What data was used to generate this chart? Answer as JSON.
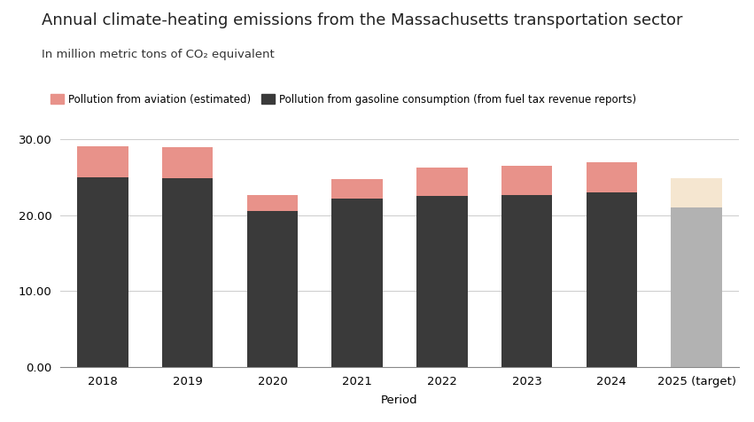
{
  "years": [
    "2018",
    "2019",
    "2020",
    "2021",
    "2022",
    "2023",
    "2024",
    "2025 (target)"
  ],
  "gasoline": [
    25.0,
    24.9,
    20.5,
    22.2,
    22.5,
    22.7,
    23.0,
    21.0
  ],
  "aviation": [
    4.1,
    4.1,
    2.1,
    2.6,
    3.8,
    3.8,
    4.0,
    3.9
  ],
  "gasoline_colors": [
    "#3a3a3a",
    "#3a3a3a",
    "#3a3a3a",
    "#3a3a3a",
    "#3a3a3a",
    "#3a3a3a",
    "#3a3a3a",
    "#b2b2b2"
  ],
  "aviation_colors": [
    "#e8928a",
    "#e8928a",
    "#e8928a",
    "#e8928a",
    "#e8928a",
    "#e8928a",
    "#e8928a",
    "#f5e6d0"
  ],
  "title": "Annual climate-heating emissions from the Massachusetts transportation sector",
  "subtitle": "In million metric tons of CO₂ equivalent",
  "xlabel": "Period",
  "ylim": [
    0,
    30
  ],
  "yticks": [
    0.0,
    10.0,
    20.0,
    30.0
  ],
  "legend_aviation": "Pollution from aviation (estimated)",
  "legend_gasoline": "Pollution from gasoline consumption (from fuel tax revenue reports)",
  "bg_color": "#ffffff",
  "title_fontsize": 13,
  "subtitle_fontsize": 9.5
}
